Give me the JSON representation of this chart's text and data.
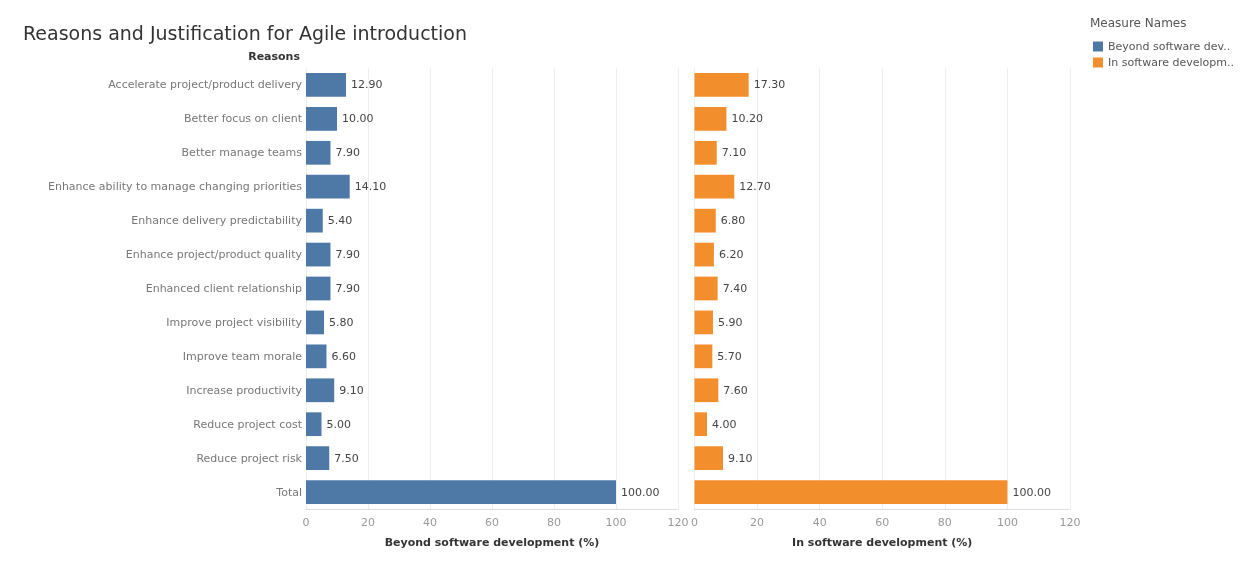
{
  "chart_data": [
    {
      "type": "bar",
      "orientation": "horizontal",
      "title": "Reasons and Justification for Agile introduction",
      "ylabel": "Reasons",
      "xlabel": "Beyond software development (%)",
      "legend_title": "Measure Names",
      "legend": "right",
      "categories": [
        "Accelerate project/product delivery",
        "Better focus on client",
        "Better manage teams",
        "Enhance ability to manage changing priorities",
        "Enhance delivery predictability",
        "Enhance project/product quality",
        "Enhanced client relationship",
        "Improve project visibility",
        "Improve team morale",
        "Increase productivity",
        "Reduce project cost",
        "Reduce project risk",
        "Total"
      ],
      "series": [
        {
          "name": "Beyond software dev..",
          "color": "#4e79a7",
          "values": [
            12.9,
            10.0,
            7.9,
            14.1,
            5.4,
            7.9,
            7.9,
            5.8,
            6.6,
            9.1,
            5.0,
            7.5,
            100.0
          ],
          "value_labels": [
            "12.90",
            "10.00",
            "7.90",
            "14.10",
            "5.40",
            "7.90",
            "7.90",
            "5.80",
            "6.60",
            "9.10",
            "5.00",
            "7.50",
            "100.00"
          ]
        }
      ],
      "xlim": [
        0,
        120
      ],
      "xticks": [
        0,
        20,
        40,
        60,
        80,
        100,
        120
      ],
      "grid": "x"
    },
    {
      "type": "bar",
      "orientation": "horizontal",
      "xlabel": "In software development (%)",
      "legend": "right",
      "tick_labels": "x",
      "categories": [
        null,
        null,
        null,
        null,
        null,
        null,
        null,
        null,
        null,
        null,
        null,
        null,
        null
      ],
      "series": [
        {
          "name": "In software developm..",
          "color": "#f28e2b",
          "values": [
            17.3,
            10.2,
            7.1,
            12.7,
            6.8,
            6.2,
            7.4,
            5.9,
            5.7,
            7.6,
            4.0,
            9.1,
            100.0
          ],
          "value_labels": [
            "17.30",
            "10.20",
            "7.10",
            "12.70",
            "6.80",
            "6.20",
            "7.40",
            "5.90",
            "5.70",
            "7.60",
            "4.00",
            "9.10",
            "100.00"
          ]
        }
      ],
      "xlim": [
        0,
        120
      ],
      "xticks": [
        0,
        20,
        40,
        60,
        80,
        100,
        120
      ],
      "grid": "x"
    }
  ]
}
